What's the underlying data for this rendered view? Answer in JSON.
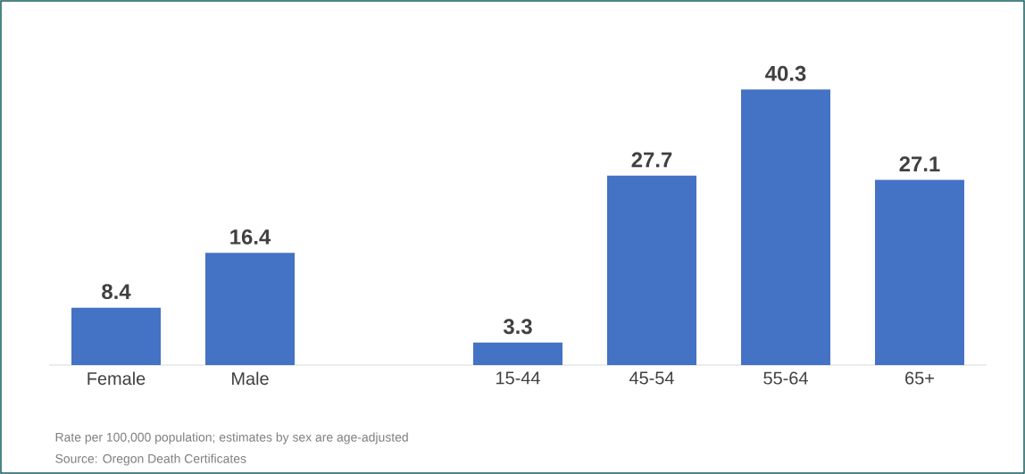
{
  "chart_data": {
    "type": "bar",
    "categories": [
      "Female",
      "Male",
      null,
      "15-44",
      "45-54",
      "55-64",
      "65+"
    ],
    "values": [
      8.4,
      16.4,
      null,
      3.3,
      27.7,
      40.3,
      27.1
    ],
    "color": "#4472c4",
    "data_labels": true,
    "annotations": [
      "Rate per 100,000 population; estimates by sex are age-adjusted",
      "Source: Oregon Death Certificates"
    ]
  }
}
